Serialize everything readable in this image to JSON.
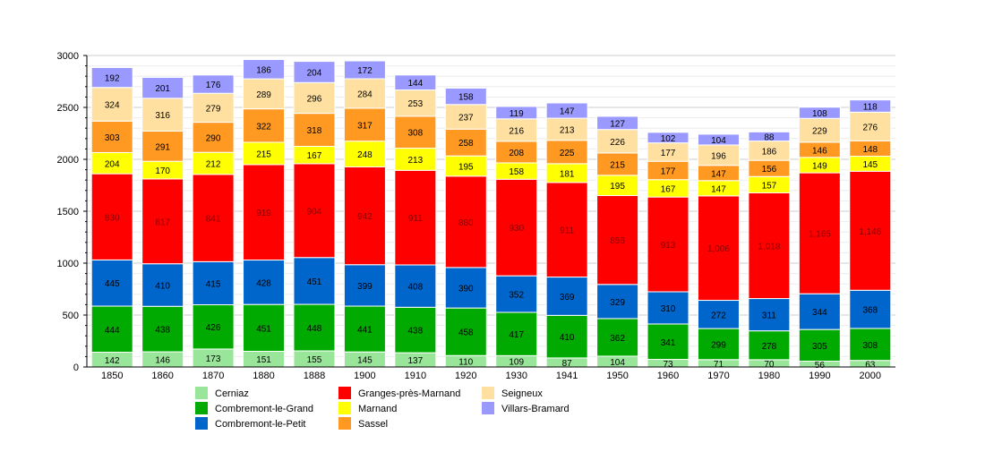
{
  "chart_data": {
    "type": "bar",
    "stacked": true,
    "title": "",
    "xlabel": "",
    "ylabel": "",
    "ylim": [
      0,
      3000
    ],
    "yticks": [
      0,
      500,
      1000,
      1500,
      2000,
      2500,
      3000
    ],
    "grid": true,
    "legend_position": "bottom",
    "categories": [
      "1850",
      "1860",
      "1870",
      "1880",
      "1888",
      "1900",
      "1910",
      "1920",
      "1930",
      "1941",
      "1950",
      "1960",
      "1970",
      "1980",
      "1990",
      "2000"
    ],
    "series": [
      {
        "name": "Cerniaz",
        "color": "#99e599",
        "values": [
          142,
          146,
          173,
          151,
          155,
          145,
          137,
          110,
          109,
          87,
          104,
          73,
          71,
          70,
          56,
          63
        ]
      },
      {
        "name": "Combremont-le-Grand",
        "color": "#00aa00",
        "values": [
          444,
          438,
          426,
          451,
          448,
          441,
          438,
          458,
          417,
          410,
          362,
          341,
          299,
          278,
          305,
          308
        ]
      },
      {
        "name": "Combremont-le-Petit",
        "color": "#0066cc",
        "values": [
          445,
          410,
          415,
          428,
          451,
          399,
          408,
          390,
          352,
          369,
          329,
          310,
          272,
          311,
          344,
          368
        ]
      },
      {
        "name": "Granges-près-Marnand",
        "color": "#ff0000",
        "values": [
          830,
          817,
          841,
          919,
          904,
          942,
          911,
          880,
          930,
          911,
          856,
          913,
          1006,
          1018,
          1165,
          1146
        ]
      },
      {
        "name": "Marnand",
        "color": "#ffff00",
        "values": [
          204,
          170,
          212,
          215,
          167,
          248,
          213,
          195,
          158,
          181,
          195,
          167,
          147,
          157,
          149,
          145
        ]
      },
      {
        "name": "Sassel",
        "color": "#ff9922",
        "values": [
          303,
          291,
          290,
          322,
          318,
          317,
          308,
          258,
          208,
          225,
          215,
          177,
          147,
          156,
          146,
          148
        ]
      },
      {
        "name": "Seigneux",
        "color": "#ffe0a0",
        "values": [
          324,
          316,
          279,
          289,
          296,
          284,
          253,
          237,
          216,
          213,
          226,
          177,
          196,
          186,
          229,
          276
        ]
      },
      {
        "name": "Villars-Bramard",
        "color": "#9999ff",
        "values": [
          192,
          201,
          176,
          186,
          204,
          172,
          144,
          158,
          119,
          147,
          127,
          102,
          104,
          88,
          108,
          118
        ]
      }
    ]
  }
}
